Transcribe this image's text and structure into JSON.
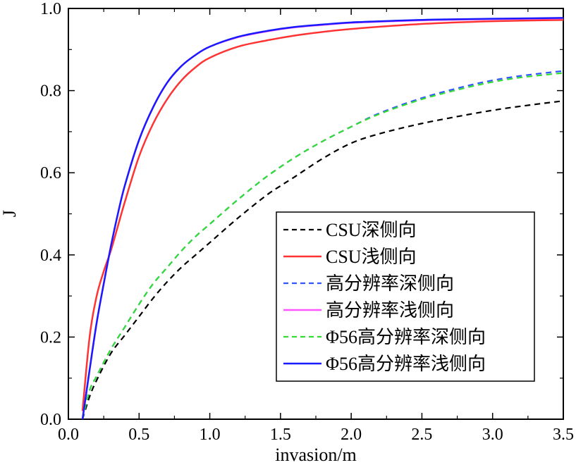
{
  "chart_data": {
    "type": "line",
    "title": "",
    "xlabel": "invasion/m",
    "ylabel": "J",
    "xlim": [
      0.0,
      3.5
    ],
    "ylim": [
      0.0,
      1.0
    ],
    "xticks": [
      0.0,
      0.5,
      1.0,
      1.5,
      2.0,
      2.5,
      3.0,
      3.5
    ],
    "yticks": [
      0.0,
      0.2,
      0.4,
      0.6,
      0.8,
      1.0
    ],
    "xtick_labels": [
      "0.0",
      "0.5",
      "1.0",
      "1.5",
      "2.0",
      "2.5",
      "3.0",
      "3.5"
    ],
    "ytick_labels": [
      "0.0",
      "0.2",
      "0.4",
      "0.6",
      "0.8",
      "1.0"
    ],
    "grid": false,
    "legend_position": "lower-right",
    "series": [
      {
        "name": "CSU深侧向",
        "color": "#000000",
        "dash": "dashed",
        "x": [
          0.1,
          0.15,
          0.2,
          0.3,
          0.4,
          0.5,
          0.6,
          0.7,
          0.8,
          0.9,
          1.0,
          1.2,
          1.4,
          1.5,
          1.6,
          1.8,
          2.0,
          2.2,
          2.5,
          2.8,
          3.0,
          3.2,
          3.5
        ],
        "y": [
          0.0,
          0.055,
          0.095,
          0.16,
          0.205,
          0.25,
          0.295,
          0.335,
          0.37,
          0.4,
          0.43,
          0.49,
          0.545,
          0.568,
          0.59,
          0.635,
          0.672,
          0.695,
          0.72,
          0.74,
          0.752,
          0.762,
          0.775
        ]
      },
      {
        "name": "CSU浅侧向",
        "color": "#ff3333",
        "dash": "solid",
        "x": [
          0.1,
          0.15,
          0.2,
          0.25,
          0.3,
          0.35,
          0.4,
          0.5,
          0.6,
          0.7,
          0.8,
          0.9,
          1.0,
          1.2,
          1.4,
          1.6,
          1.8,
          2.0,
          2.3,
          2.6,
          3.0,
          3.5
        ],
        "y": [
          0.02,
          0.2,
          0.3,
          0.36,
          0.41,
          0.47,
          0.53,
          0.64,
          0.72,
          0.78,
          0.825,
          0.857,
          0.88,
          0.907,
          0.922,
          0.934,
          0.943,
          0.95,
          0.958,
          0.964,
          0.969,
          0.972
        ]
      },
      {
        "name": "高分辨率深侧向",
        "color": "#3355ff",
        "dash": "dashed",
        "x": [
          0.1,
          0.15,
          0.2,
          0.3,
          0.4,
          0.5,
          0.6,
          0.7,
          0.8,
          0.9,
          1.0,
          1.2,
          1.4,
          1.6,
          1.8,
          2.0,
          2.2,
          2.5,
          2.8,
          3.0,
          3.2,
          3.5
        ],
        "y": [
          0.0,
          0.07,
          0.105,
          0.17,
          0.225,
          0.28,
          0.33,
          0.37,
          0.41,
          0.445,
          0.475,
          0.535,
          0.59,
          0.637,
          0.677,
          0.712,
          0.745,
          0.782,
          0.81,
          0.825,
          0.836,
          0.848
        ]
      },
      {
        "name": "高分辨率浅侧向",
        "color": "#ff55ff",
        "dash": "solid",
        "x": [
          0.1,
          0.15,
          0.2,
          0.25,
          0.3,
          0.35,
          0.4,
          0.5,
          0.6,
          0.7,
          0.8,
          0.9,
          1.0,
          1.2,
          1.4,
          1.6,
          1.8,
          2.0,
          2.3,
          2.6,
          3.0,
          3.5
        ],
        "y": [
          0.0,
          0.12,
          0.235,
          0.33,
          0.42,
          0.5,
          0.57,
          0.68,
          0.76,
          0.82,
          0.86,
          0.887,
          0.907,
          0.93,
          0.944,
          0.954,
          0.96,
          0.965,
          0.969,
          0.972,
          0.974,
          0.976
        ]
      },
      {
        "name": "Φ56高分辨率深侧向",
        "color": "#33dd33",
        "dash": "dashed",
        "x": [
          0.1,
          0.15,
          0.2,
          0.3,
          0.4,
          0.5,
          0.6,
          0.7,
          0.8,
          0.9,
          1.0,
          1.2,
          1.4,
          1.6,
          1.8,
          2.0,
          2.2,
          2.5,
          2.8,
          3.0,
          3.2,
          3.5
        ],
        "y": [
          0.0,
          0.07,
          0.105,
          0.17,
          0.225,
          0.28,
          0.33,
          0.37,
          0.41,
          0.445,
          0.475,
          0.535,
          0.59,
          0.637,
          0.677,
          0.712,
          0.743,
          0.779,
          0.806,
          0.821,
          0.832,
          0.843
        ]
      },
      {
        "name": "Φ56高分辨率浅侧向",
        "color": "#1a1aff",
        "dash": "solid",
        "x": [
          0.1,
          0.15,
          0.2,
          0.25,
          0.3,
          0.35,
          0.4,
          0.5,
          0.6,
          0.7,
          0.8,
          0.9,
          1.0,
          1.2,
          1.4,
          1.6,
          1.8,
          2.0,
          2.3,
          2.6,
          3.0,
          3.5
        ],
        "y": [
          0.0,
          0.12,
          0.235,
          0.33,
          0.42,
          0.5,
          0.57,
          0.68,
          0.76,
          0.82,
          0.86,
          0.887,
          0.907,
          0.931,
          0.945,
          0.955,
          0.961,
          0.966,
          0.97,
          0.973,
          0.975,
          0.977
        ]
      }
    ]
  }
}
